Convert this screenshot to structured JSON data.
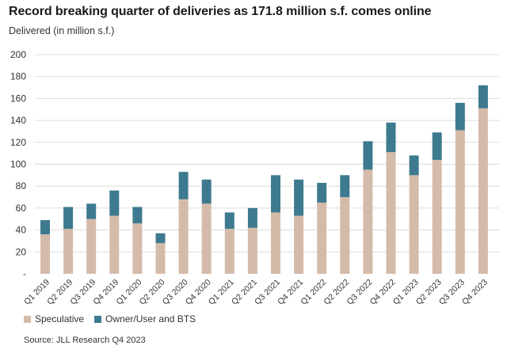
{
  "title": "Record breaking quarter of deliveries as 171.8 million s.f. comes online",
  "ylabel": "Delivered (in million s.f.)",
  "source": "Source: JLL Research Q4 2023",
  "colors": {
    "speculative": "#d4bba9",
    "owner": "#3e7a8f",
    "grid": "#dcdcdc",
    "text": "#333333"
  },
  "chart_data": {
    "type": "bar",
    "stacked": true,
    "categories": [
      "Q1 2019",
      "Q2 2019",
      "Q3 2019",
      "Q4 2019",
      "Q1 2020",
      "Q2 2020",
      "Q3 2020",
      "Q4 2020",
      "Q1 2021",
      "Q2 2021",
      "Q3 2021",
      "Q4 2021",
      "Q1 2022",
      "Q2 2022",
      "Q3 2022",
      "Q4 2022",
      "Q1 2023",
      "Q2 2023",
      "Q3 2023",
      "Q4 2023"
    ],
    "series": [
      {
        "name": "Speculative",
        "values": [
          36,
          41,
          50,
          53,
          46,
          28,
          68,
          64,
          41,
          42,
          56,
          53,
          65,
          70,
          95,
          111,
          90,
          104,
          131,
          151
        ]
      },
      {
        "name": "Owner/User and BTS",
        "values": [
          13,
          20,
          14,
          23,
          15,
          9,
          25,
          22,
          15,
          18,
          34,
          33,
          18,
          20,
          26,
          27,
          18,
          25,
          25,
          21
        ]
      }
    ],
    "yticks": [
      "-",
      "20",
      "40",
      "60",
      "80",
      "100",
      "120",
      "140",
      "160",
      "180",
      "200"
    ],
    "ylim": [
      0,
      200
    ],
    "grid": true,
    "legend_position": "bottom-left"
  }
}
